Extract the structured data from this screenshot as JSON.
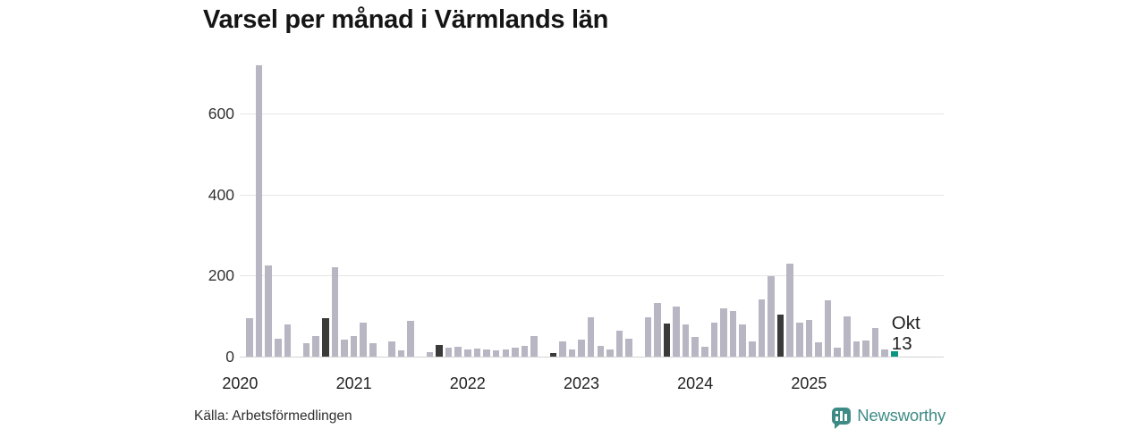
{
  "title": "Varsel per månad i Värmlands län",
  "source": "Källa: Arbetsförmedlingen",
  "brand": {
    "name": "Newsworthy",
    "color": "#3e8b86"
  },
  "colors": {
    "bar": "#b9b6c4",
    "bar_dark": "#3a3a3a",
    "bar_accent": "#0a9583",
    "gridline": "#e4e4e4",
    "baseline": "#d2d2d2",
    "tick_text": "#333333",
    "annotation_text": "#1f1f1f",
    "title_text": "#151515"
  },
  "chart_data": {
    "type": "bar",
    "title": "Varsel per månad i Värmlands län",
    "unit": "varsel (antal per månad)",
    "x_start": "2020-01",
    "x_end": "2025-10",
    "x_tick_labels": [
      "2020",
      "2021",
      "2022",
      "2023",
      "2024",
      "2025"
    ],
    "y_ticks": [
      0,
      200,
      400,
      600
    ],
    "ylim": [
      0,
      740
    ],
    "grid": "horizontal",
    "legend": "none",
    "values": [
      0,
      95,
      720,
      225,
      45,
      80,
      0,
      33,
      50,
      95,
      220,
      42,
      50,
      85,
      33,
      0,
      38,
      15,
      88,
      0,
      11,
      28,
      23,
      25,
      17,
      20,
      17,
      15,
      17,
      23,
      27,
      50,
      0,
      8,
      38,
      17,
      42,
      98,
      26,
      18,
      64,
      45,
      0,
      97,
      132,
      81,
      123,
      79,
      48,
      24,
      84,
      120,
      112,
      79,
      38,
      141,
      198,
      104,
      229,
      84,
      90,
      35,
      140,
      22,
      100,
      38,
      40,
      70,
      18,
      13
    ],
    "highlight_dark_indices": [
      9,
      21,
      33,
      45,
      57
    ],
    "highlight_dark_note": "oktober varje år markerad i mörkgrått",
    "accent_index": 69,
    "annotation": {
      "month_label": "Okt",
      "value_label": "13",
      "value": 13
    }
  }
}
